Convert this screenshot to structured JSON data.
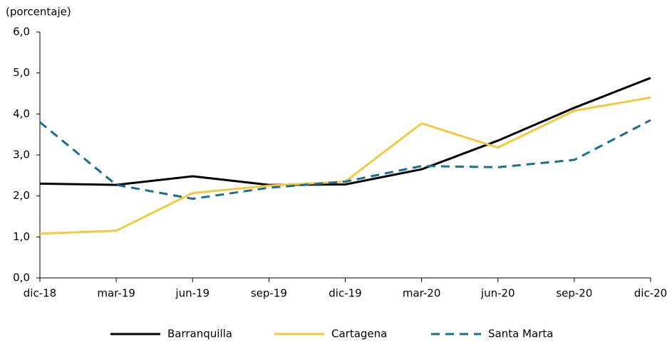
{
  "chart_data": {
    "type": "line",
    "y_label": "(porcentaje)",
    "categories": [
      "dic-18",
      "mar-19",
      "jun-19",
      "sep-19",
      "dic-19",
      "mar-20",
      "jun-20",
      "sep-20",
      "dic-20"
    ],
    "series": [
      {
        "name": "Barranquilla",
        "color": "#000000",
        "dashed": false,
        "values": [
          2.3,
          2.27,
          2.48,
          2.27,
          2.28,
          2.65,
          3.35,
          4.15,
          4.88
        ]
      },
      {
        "name": "Cartagena",
        "color": "#f5c842",
        "dashed": false,
        "values": [
          1.08,
          1.15,
          2.07,
          2.25,
          2.35,
          3.77,
          3.18,
          4.08,
          4.4
        ]
      },
      {
        "name": "Santa Marta",
        "color": "#1b6e8f",
        "dashed": true,
        "values": [
          3.8,
          2.27,
          1.93,
          2.2,
          2.35,
          2.73,
          2.7,
          2.88,
          3.85
        ]
      }
    ],
    "ylim": [
      0,
      6
    ],
    "yticks": [
      {
        "value": 0,
        "label": "0,0"
      },
      {
        "value": 1,
        "label": "1,0"
      },
      {
        "value": 2,
        "label": "2,0"
      },
      {
        "value": 3,
        "label": "3,0"
      },
      {
        "value": 4,
        "label": "4,0"
      },
      {
        "value": 5,
        "label": "5,0"
      },
      {
        "value": 6,
        "label": "6,0"
      }
    ],
    "legend": "bottom"
  }
}
